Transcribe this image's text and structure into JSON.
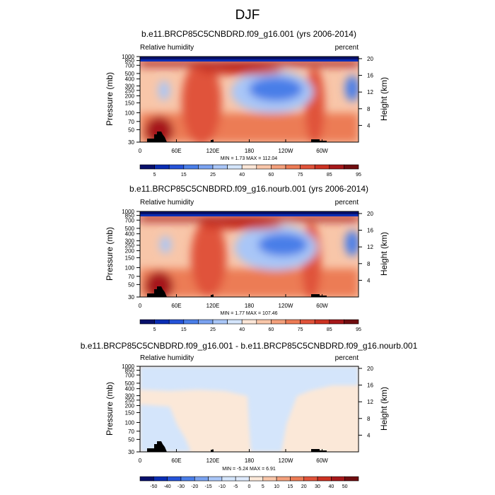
{
  "figure_title": "DJF",
  "colors": {
    "abs_scale": [
      "#08106b",
      "#0a2db4",
      "#2553d8",
      "#4a7ee8",
      "#7aa2f0",
      "#a9c6f7",
      "#d4e5fb",
      "#fbe6d7",
      "#f8c6a9",
      "#f3a07c",
      "#ec7b55",
      "#e0533a",
      "#cc3222",
      "#a6181a",
      "#700d10"
    ],
    "diff_scale": [
      "#08106b",
      "#0a2db4",
      "#2553d8",
      "#4a7ee8",
      "#7aa2f0",
      "#a9c6f7",
      "#d4e5fb",
      "#dde9fb",
      "#fbe8d8",
      "#f8c6a9",
      "#f3a07c",
      "#ec7b55",
      "#e0533a",
      "#cc3222",
      "#a6181a",
      "#700d10"
    ],
    "terrain": "#000000"
  },
  "chart_data": [
    {
      "type": "heatmap",
      "title": "b.e11.BRCP85C5CNBDRD.f09_g16.001 (yrs 2006-2014)",
      "left_label": "Relative humidity",
      "right_label": "percent",
      "ylabel": "Pressure (mb)",
      "y2label": "Height (km)",
      "xticks": [
        "0",
        "60E",
        "120E",
        "180",
        "120W",
        "60W"
      ],
      "pressure_ticks": [
        "1000",
        "850",
        "700",
        "500",
        "400",
        "300",
        "250",
        "200",
        "150",
        "100",
        "70",
        "50",
        "30"
      ],
      "height_ticks": [
        "4",
        "8",
        "12",
        "16",
        "20"
      ],
      "stats": "MIN =   1.73  MAX = 112.04",
      "colorbar_labels": [
        "5",
        "15",
        "25",
        "40",
        "60",
        "75",
        "85",
        "95"
      ],
      "colorbar_levels": [
        5,
        10,
        15,
        20,
        25,
        30,
        40,
        50,
        60,
        70,
        75,
        80,
        85,
        90,
        95
      ]
    },
    {
      "type": "heatmap",
      "title": "b.e11.BRCP85C5CNBDRD.f09_g16.nourb.001 (yrs 2006-2014)",
      "left_label": "Relative humidity",
      "right_label": "percent",
      "ylabel": "Pressure (mb)",
      "y2label": "Height (km)",
      "xticks": [
        "0",
        "60E",
        "120E",
        "180",
        "120W",
        "60W"
      ],
      "pressure_ticks": [
        "1000",
        "850",
        "700",
        "500",
        "400",
        "300",
        "250",
        "200",
        "150",
        "100",
        "70",
        "50",
        "30"
      ],
      "height_ticks": [
        "4",
        "8",
        "12",
        "16",
        "20"
      ],
      "stats": "MIN =   1.77  MAX = 107.46",
      "colorbar_labels": [
        "5",
        "15",
        "25",
        "40",
        "60",
        "75",
        "85",
        "95"
      ],
      "colorbar_levels": [
        5,
        10,
        15,
        20,
        25,
        30,
        40,
        50,
        60,
        70,
        75,
        80,
        85,
        90,
        95
      ]
    },
    {
      "type": "heatmap",
      "title": "b.e11.BRCP85C5CNBDRD.f09_g16.001 - b.e11.BRCP85C5CNBDRD.f09_g16.nourb.001",
      "left_label": "Relative humidity",
      "right_label": "percent",
      "ylabel": "Pressure (mb)",
      "y2label": "Height (km)",
      "xticks": [
        "0",
        "60E",
        "120E",
        "180",
        "120W",
        "60W"
      ],
      "pressure_ticks": [
        "1000",
        "850",
        "700",
        "500",
        "400",
        "300",
        "250",
        "200",
        "150",
        "100",
        "70",
        "50",
        "30"
      ],
      "height_ticks": [
        "4",
        "8",
        "12",
        "16",
        "20"
      ],
      "stats": "MIN =  -5.24  MAX =   6.91",
      "colorbar_labels": [
        "-50",
        "-40",
        "-30",
        "-20",
        "-15",
        "-10",
        "-5",
        "0",
        "5",
        "10",
        "15",
        "20",
        "30",
        "40",
        "50"
      ],
      "colorbar_levels": [
        -50,
        -40,
        -30,
        -20,
        -15,
        -10,
        -5,
        0,
        5,
        10,
        15,
        20,
        30,
        40,
        50
      ]
    }
  ]
}
